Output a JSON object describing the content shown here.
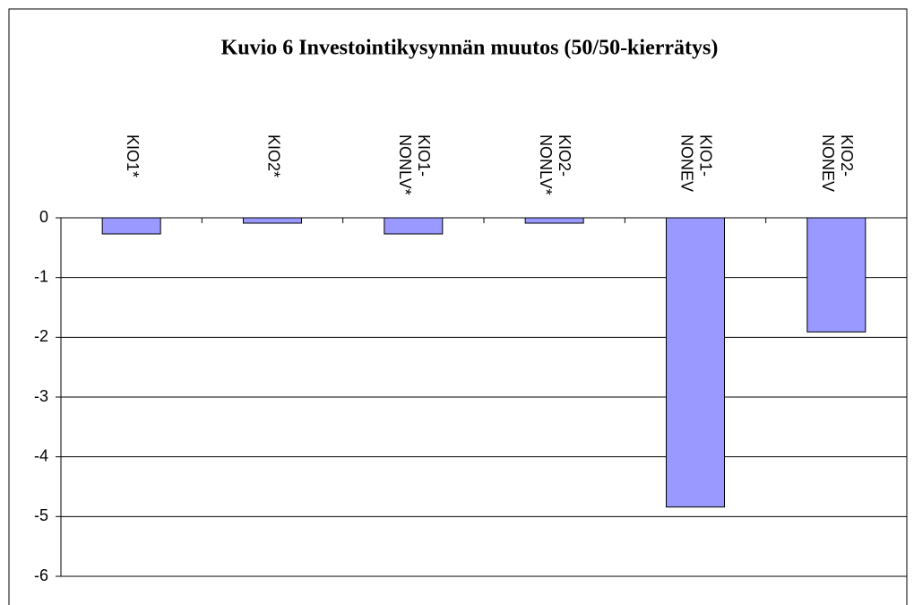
{
  "chart_data": {
    "type": "bar",
    "title": "Kuvio 6 Investointikysynnän muutos (50/50-kierrätys)",
    "categories": [
      "KIO1*",
      "KIO2*",
      "KIO1-NONLV*",
      "KIO2-NONLV*",
      "KIO1-NONEV",
      "KIO2-NONEV"
    ],
    "values": [
      -0.27,
      -0.09,
      -0.27,
      -0.09,
      -4.84,
      -1.91
    ],
    "color": "#9999ff",
    "ylim": [
      -6,
      0
    ],
    "yticks": [
      0,
      -1,
      -2,
      -3,
      -4,
      -5,
      -6
    ],
    "grid": true
  }
}
